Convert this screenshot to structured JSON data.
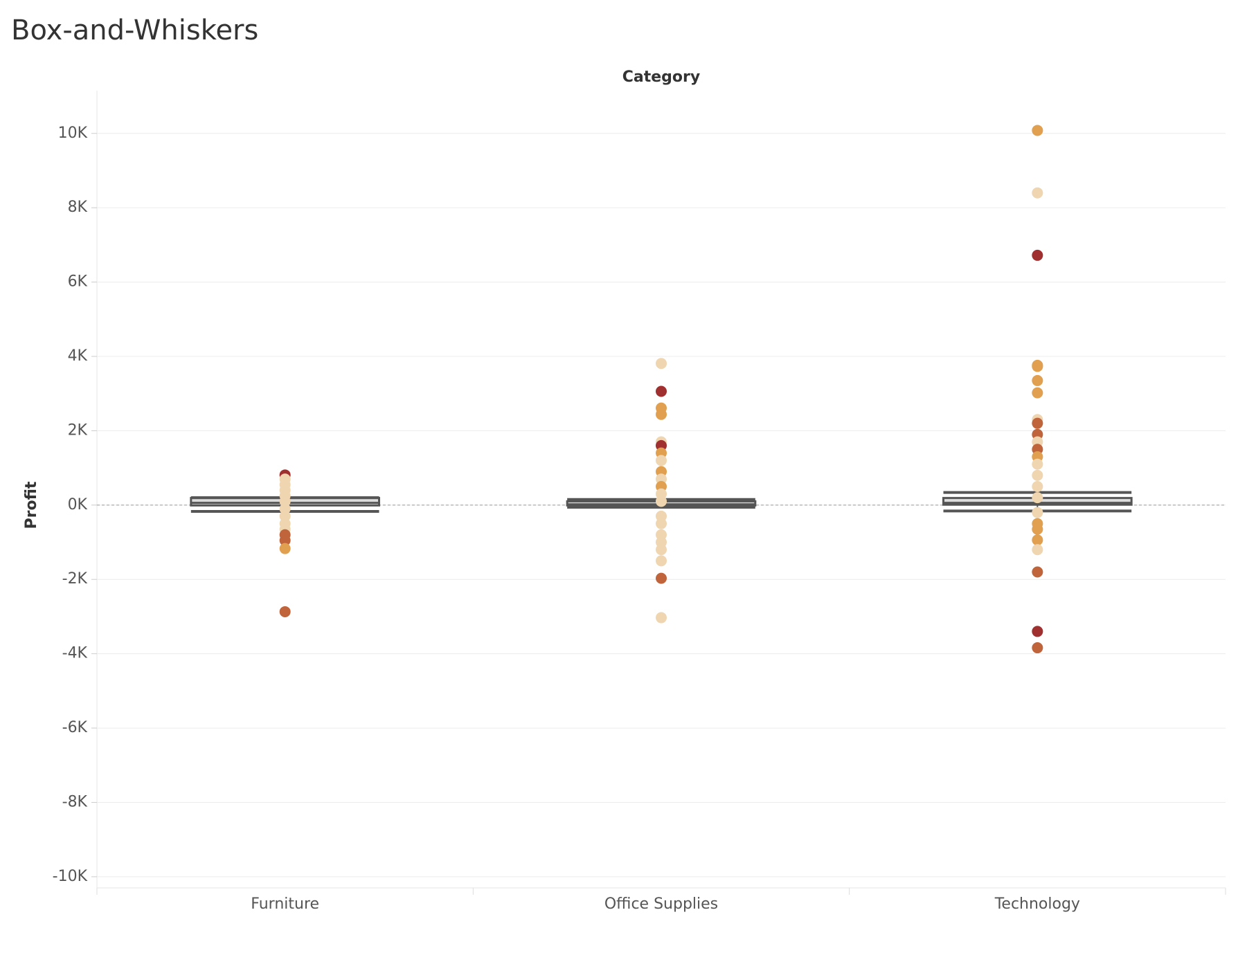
{
  "chart_data": {
    "type": "box",
    "title": "Box-and-Whiskers",
    "x_label": "Category",
    "y_label": "Profit",
    "categories": [
      "Furniture",
      "Office Supplies",
      "Technology"
    ],
    "ylim": [
      -10300,
      11150
    ],
    "yticks": [
      {
        "value": 10000,
        "label": "10K"
      },
      {
        "value": 8000,
        "label": "8K"
      },
      {
        "value": 6000,
        "label": "6K"
      },
      {
        "value": 4000,
        "label": "4K"
      },
      {
        "value": 2000,
        "label": "2K"
      },
      {
        "value": 0,
        "label": "0K"
      },
      {
        "value": -2000,
        "label": "-2K"
      },
      {
        "value": -4000,
        "label": "-4K"
      },
      {
        "value": -6000,
        "label": "-6K"
      },
      {
        "value": -8000,
        "label": "-8K"
      },
      {
        "value": -10000,
        "label": "-10K"
      }
    ],
    "grid": true,
    "zero_line": true,
    "box_color": "#555555",
    "boxes": [
      {
        "low": -170,
        "q1": -10,
        "median": 60,
        "q3": 190,
        "high": 200,
        "points": [
          810,
          700,
          550,
          400,
          250,
          100,
          -100,
          -300,
          -500,
          -650,
          -800,
          -950,
          -1170,
          -2870
        ],
        "point_colors": [
          "#a0302f",
          "#efd5b0",
          "#efd5b0",
          "#efd5b0",
          "#efd5b0",
          "#efd5b0",
          "#efd5b0",
          "#efd5b0",
          "#efd5b0",
          "#efd5b0",
          "#c0643c",
          "#c0643c",
          "#e0a050",
          "#c0643c"
        ]
      },
      {
        "low": -60,
        "q1": -10,
        "median": 20,
        "q3": 100,
        "high": 150,
        "points": [
          3810,
          3060,
          2610,
          2440,
          1700,
          1600,
          1400,
          1200,
          900,
          700,
          500,
          300,
          100,
          -300,
          -500,
          -800,
          -1000,
          -1200,
          -1500,
          -1970,
          -3030
        ],
        "point_colors": [
          "#efd5b0",
          "#a0302f",
          "#e0a050",
          "#e0a050",
          "#efd5b0",
          "#a0302f",
          "#e0a050",
          "#efd5b0",
          "#e0a050",
          "#efd5b0",
          "#e0a050",
          "#efd5b0",
          "#efd5b0",
          "#efd5b0",
          "#efd5b0",
          "#efd5b0",
          "#efd5b0",
          "#efd5b0",
          "#efd5b0",
          "#c0643c",
          "#efd5b0"
        ]
      },
      {
        "low": -160,
        "q1": 10,
        "median": 60,
        "q3": 190,
        "high": 340,
        "points": [
          10080,
          8400,
          6720,
          3760,
          3730,
          3350,
          3020,
          2300,
          2200,
          1900,
          1700,
          1500,
          1300,
          1100,
          800,
          500,
          200,
          -200,
          -500,
          -650,
          -940,
          -1200,
          -1800,
          -3400,
          -3840
        ],
        "point_colors": [
          "#e0a050",
          "#efd5b0",
          "#a0302f",
          "#e0a050",
          "#e0a050",
          "#e0a050",
          "#e0a050",
          "#efd5b0",
          "#c0643c",
          "#c0643c",
          "#efd5b0",
          "#c0643c",
          "#e0a050",
          "#efd5b0",
          "#efd5b0",
          "#efd5b0",
          "#efd5b0",
          "#efd5b0",
          "#e0a050",
          "#e0a050",
          "#e0a050",
          "#efd5b0",
          "#c0643c",
          "#a0302f",
          "#c0643c"
        ]
      }
    ]
  }
}
